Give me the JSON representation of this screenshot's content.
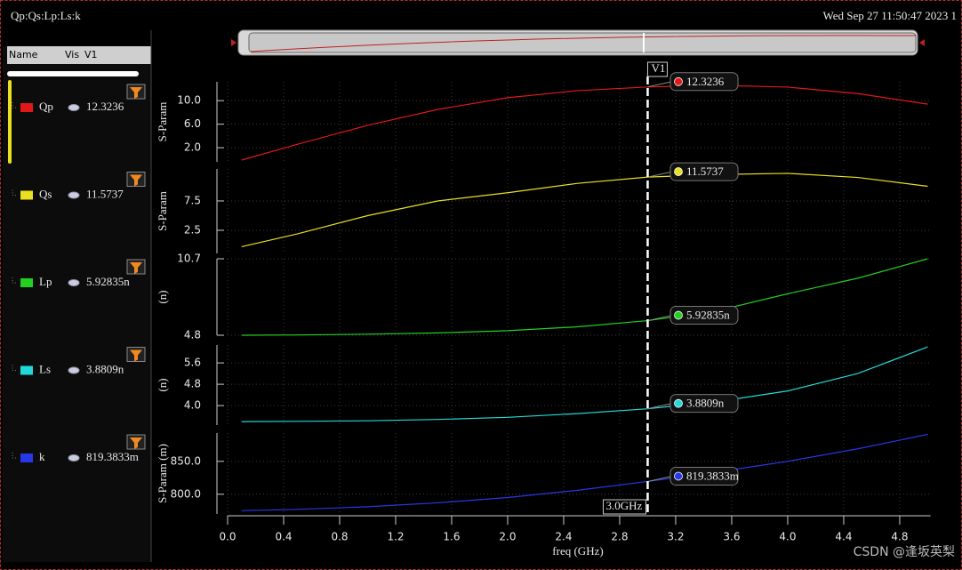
{
  "header": {
    "title": "Qp:Qs:Lp:Ls:k",
    "timestamp": "Wed Sep 27 11:50:47 2023  1"
  },
  "panel": {
    "columns": [
      "Name",
      "Vis",
      "V1"
    ]
  },
  "cursor": {
    "name": "V1",
    "x": {
      "value": 3.0,
      "label": "3.0GHz"
    }
  },
  "xlabel": "freq (GHz)",
  "watermark": "CSDN @逢坂英梨",
  "chart_data": [
    {
      "type": "line",
      "ylabel": "S-Param",
      "grid": true,
      "x": [
        0.1,
        0.5,
        1.0,
        1.5,
        2.0,
        2.5,
        3.0,
        3.5,
        4.0,
        4.5,
        5.0
      ],
      "xlim": [
        0,
        5.02
      ],
      "series": [
        {
          "name": "Qp",
          "color": "#e01818",
          "values": [
            -0.1,
            2.6,
            5.8,
            8.5,
            10.5,
            11.7,
            12.32,
            12.6,
            12.3,
            11.2,
            9.4
          ]
        }
      ],
      "ylim": [
        -0.4,
        13.2
      ],
      "yticks": [
        {
          "value": 2,
          "label": "2.0"
        },
        {
          "value": 6,
          "label": "6.0"
        },
        {
          "value": 10,
          "label": "10.0"
        }
      ],
      "marker": 12.3236
    },
    {
      "type": "line",
      "ylabel": "S-Param",
      "grid": true,
      "x": [
        0.1,
        0.5,
        1.0,
        1.5,
        2.0,
        2.5,
        3.0,
        3.5,
        4.0,
        4.5,
        5.0
      ],
      "xlim": [
        0,
        5.02
      ],
      "series": [
        {
          "name": "Qs",
          "color": "#e8e020",
          "values": [
            -0.3,
            1.9,
            5.0,
            7.5,
            8.9,
            10.5,
            11.57,
            12.0,
            12.2,
            11.5,
            10.0
          ]
        }
      ],
      "ylim": [
        -1.44,
        12.95
      ],
      "yticks": [
        2.5,
        7.5
      ],
      "marker": 11.5737
    },
    {
      "type": "line",
      "ylabel": "(n)",
      "grid": true,
      "x": [
        0.1,
        0.5,
        1.0,
        1.5,
        2.0,
        2.5,
        3.0,
        3.5,
        4.0,
        4.5,
        5.0
      ],
      "xlim": [
        0,
        5.02
      ],
      "series": [
        {
          "name": "Lp",
          "color": "#22d022",
          "values": [
            4.8,
            4.82,
            4.88,
            4.98,
            5.15,
            5.45,
            5.928,
            6.7,
            8.0,
            9.2,
            10.7
          ]
        }
      ],
      "ylim": [
        4.8,
        10.7
      ],
      "yticks": [
        4.8,
        10.7
      ],
      "marker": {
        "value": 5.92835,
        "label": "5.92835n"
      }
    },
    {
      "type": "line",
      "ylabel": "(n)",
      "grid": true,
      "x": [
        0.1,
        0.5,
        1.0,
        1.5,
        2.0,
        2.5,
        3.0,
        3.5,
        4.0,
        4.5,
        5.0
      ],
      "xlim": [
        0,
        5.02
      ],
      "series": [
        {
          "name": "Ls",
          "color": "#22d8d8",
          "values": [
            3.4,
            3.41,
            3.43,
            3.48,
            3.56,
            3.7,
            3.88,
            4.15,
            4.55,
            5.2,
            6.2
          ]
        }
      ],
      "ylim": [
        3.27,
        6.27
      ],
      "yticks": [
        {
          "value": 4,
          "label": "4.0"
        },
        4.8,
        5.6
      ],
      "marker": {
        "value": 3.8809,
        "label": "3.8809n"
      }
    },
    {
      "type": "line",
      "ylabel": "S-Param (m)",
      "grid": true,
      "x": [
        0.1,
        0.5,
        1.0,
        1.5,
        2.0,
        2.5,
        3.0,
        3.5,
        4.0,
        4.5,
        5.0
      ],
      "xlim": [
        0,
        5.02
      ],
      "xticks": [
        {
          "value": 0,
          "label": "0.0"
        },
        0.4,
        0.8,
        1.2,
        1.6,
        {
          "value": 2,
          "label": "2.0"
        },
        2.4,
        2.8,
        3.2,
        3.6,
        {
          "value": 4,
          "label": "4.0"
        },
        4.4,
        4.8
      ],
      "series": [
        {
          "name": "k",
          "color": "#2838e8",
          "values": [
            775,
            777,
            781,
            787,
            795,
            806,
            819.4,
            834,
            850,
            869,
            891
          ]
        }
      ],
      "ylim": [
        770,
        893
      ],
      "yticks": [
        {
          "value": 800,
          "label": "800.0"
        },
        {
          "value": 850,
          "label": "850.0"
        }
      ],
      "marker": {
        "value": 819.3833,
        "label": "819.3833m"
      }
    }
  ]
}
